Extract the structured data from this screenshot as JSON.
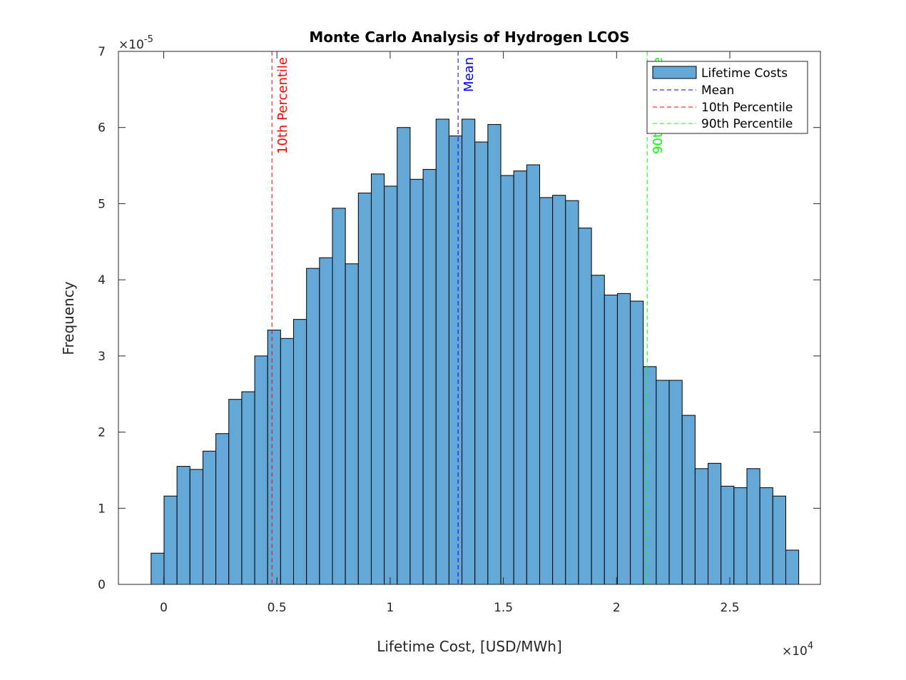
{
  "chart_data": {
    "type": "bar",
    "title": "Monte Carlo Analysis of Hydrogen LCOS",
    "xlabel": "Lifetime Cost, [USD/MWh]",
    "ylabel": "Frequency",
    "x_exponent_base": "×10",
    "x_exponent_power": "4",
    "y_exponent_base": "×10",
    "y_exponent_power": "-5",
    "xlim": [
      -0.2,
      2.9
    ],
    "ylim": [
      0,
      7
    ],
    "x_scale": "1e4",
    "y_scale": "1e-5",
    "xticks": [
      0,
      0.5,
      1,
      1.5,
      2,
      2.5
    ],
    "xtick_labels": [
      "0",
      "0.5",
      "1",
      "1.5",
      "2",
      "2.5"
    ],
    "yticks": [
      0,
      1,
      2,
      3,
      4,
      5,
      6,
      7
    ],
    "ytick_labels": [
      "0",
      "1",
      "2",
      "3",
      "4",
      "5",
      "6",
      "7"
    ],
    "bin_start": -0.0557,
    "bin_width": 0.0572,
    "values": [
      0.41,
      1.16,
      1.55,
      1.51,
      1.75,
      1.98,
      2.43,
      2.53,
      3.0,
      3.34,
      3.23,
      3.48,
      4.15,
      4.29,
      4.94,
      4.21,
      5.14,
      5.39,
      5.23,
      6.0,
      5.32,
      5.45,
      6.11,
      5.89,
      6.11,
      5.81,
      6.04,
      5.37,
      5.43,
      5.51,
      5.08,
      5.11,
      5.04,
      4.68,
      4.06,
      3.8,
      3.82,
      3.72,
      2.86,
      2.68,
      2.68,
      2.22,
      1.52,
      1.59,
      1.29,
      1.27,
      1.52,
      1.27,
      1.16,
      0.45
    ],
    "bar_color": "#64a8d7",
    "bar_edge_color": "#000000",
    "vlines": [
      {
        "name": "Mean",
        "x": 1.3,
        "color": "#0000ff"
      },
      {
        "name": "10th Percentile",
        "x": 0.478,
        "color": "#ff0000"
      },
      {
        "name": "90th Percentile",
        "x": 2.135,
        "color": "#00ff00"
      }
    ],
    "legend": {
      "position": "top-right",
      "entries": [
        "Lifetime Costs",
        "Mean",
        "10th Percentile",
        "90th Percentile"
      ]
    },
    "grid": false
  }
}
